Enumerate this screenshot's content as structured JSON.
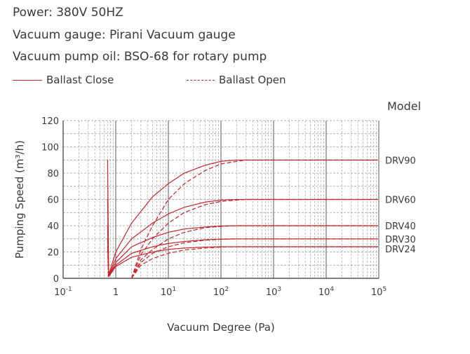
{
  "header": {
    "lines": [
      "Power: 380V 50HZ",
      "Vacuum gauge: Pirani Vacuum gauge",
      "Vacuum pump oil: BSO-68 for rotary pump"
    ]
  },
  "legend": {
    "close_label": "Ballast Close",
    "open_label": "Ballast Open"
  },
  "model_label": "Model",
  "colors": {
    "curve": "#c0272d",
    "grid": "#9a9a9a",
    "axis": "#555555"
  },
  "chart_data": {
    "type": "line",
    "title": "",
    "xlabel": "Vacuum Degree (Pa)",
    "ylabel": "Pumping Speed (m³/h)",
    "xscale": "log",
    "xlim": [
      0.1,
      100000
    ],
    "ylim": [
      0,
      120
    ],
    "x_ticks": [
      {
        "value": 0.1,
        "base": "10",
        "exp": "-1"
      },
      {
        "value": 1,
        "base": "1",
        "exp": ""
      },
      {
        "value": 10,
        "base": "10",
        "exp": "1"
      },
      {
        "value": 100,
        "base": "10",
        "exp": "2"
      },
      {
        "value": 1000,
        "base": "10",
        "exp": "3"
      },
      {
        "value": 10000,
        "base": "10",
        "exp": "4"
      },
      {
        "value": 100000,
        "base": "10",
        "exp": "5"
      }
    ],
    "y_ticks": [
      0,
      20,
      40,
      60,
      80,
      100,
      120
    ],
    "grid": true,
    "legend_position": "top-left",
    "series": [
      {
        "name": "DRV90",
        "ballast": "close",
        "x": [
          0.7,
          1,
          2,
          5,
          10,
          20,
          50,
          100,
          200,
          100000
        ],
        "y": [
          0,
          20,
          42,
          62,
          72,
          80,
          86,
          89,
          90,
          90
        ]
      },
      {
        "name": "DRV90",
        "ballast": "open",
        "x": [
          2,
          3,
          5,
          10,
          20,
          50,
          100,
          200,
          300,
          100000
        ],
        "y": [
          0,
          22,
          40,
          60,
          72,
          82,
          87,
          89,
          90,
          90
        ]
      },
      {
        "name": "DRV60",
        "ballast": "close",
        "x": [
          0.7,
          1,
          2,
          5,
          10,
          20,
          50,
          100,
          200,
          100000
        ],
        "y": [
          0,
          15,
          30,
          42,
          49,
          54,
          58,
          59.5,
          60,
          60
        ]
      },
      {
        "name": "DRV60",
        "ballast": "open",
        "x": [
          2,
          3,
          5,
          10,
          20,
          50,
          100,
          200,
          300,
          100000
        ],
        "y": [
          0,
          18,
          30,
          42,
          50,
          56,
          58.5,
          59.5,
          60,
          60
        ]
      },
      {
        "name": "DRV40",
        "ballast": "close",
        "x": [
          0.7,
          1,
          2,
          5,
          10,
          20,
          50,
          100,
          200,
          100000
        ],
        "y": [
          0,
          12,
          24,
          31,
          35,
          37.5,
          39,
          39.8,
          40,
          40
        ]
      },
      {
        "name": "DRV40",
        "ballast": "open",
        "x": [
          2,
          3,
          5,
          10,
          20,
          50,
          100,
          200,
          300,
          100000
        ],
        "y": [
          0,
          14,
          22,
          30,
          35,
          38.5,
          39.5,
          40,
          40,
          40
        ]
      },
      {
        "name": "DRV30",
        "ballast": "close",
        "x": [
          0.7,
          1,
          2,
          5,
          10,
          20,
          50,
          100,
          200,
          100000
        ],
        "y": [
          0,
          10,
          19,
          24,
          26.5,
          28,
          29.3,
          29.8,
          30,
          30
        ]
      },
      {
        "name": "DRV30",
        "ballast": "open",
        "x": [
          2,
          3,
          5,
          10,
          20,
          50,
          100,
          200,
          300,
          100000
        ],
        "y": [
          0,
          12,
          19,
          24,
          27,
          29,
          29.7,
          30,
          30,
          30
        ]
      },
      {
        "name": "DRV24",
        "ballast": "close",
        "x": [
          0.7,
          1,
          2,
          5,
          10,
          20,
          50,
          100,
          200,
          100000
        ],
        "y": [
          0,
          9,
          16,
          20,
          22,
          23,
          23.8,
          24,
          24,
          24
        ]
      },
      {
        "name": "DRV24",
        "ballast": "open",
        "x": [
          2,
          3,
          5,
          10,
          20,
          50,
          100,
          200,
          300,
          100000
        ],
        "y": [
          0,
          10,
          15,
          19,
          21.5,
          23,
          23.8,
          24,
          24,
          24
        ]
      }
    ],
    "model_labels": [
      {
        "name": "DRV90",
        "value": 90
      },
      {
        "name": "DRV60",
        "value": 60
      },
      {
        "name": "DRV40",
        "value": 40
      },
      {
        "name": "DRV30",
        "value": 30
      },
      {
        "name": "DRV24",
        "value": 24
      }
    ]
  }
}
